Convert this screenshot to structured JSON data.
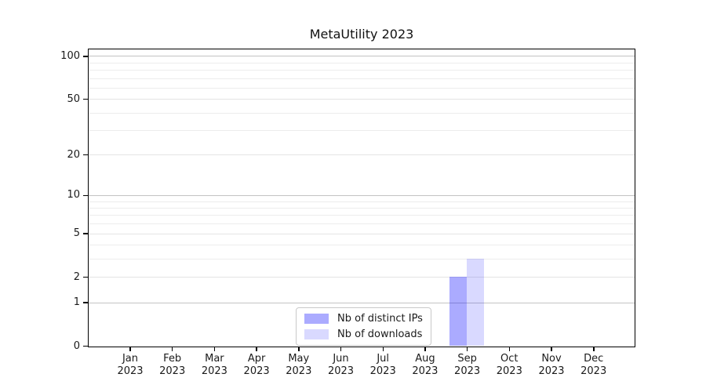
{
  "chart_data": {
    "type": "bar",
    "title": "MetaUtility 2023",
    "categories": [
      "Jan",
      "Feb",
      "Mar",
      "Apr",
      "May",
      "Jun",
      "Jul",
      "Aug",
      "Sep",
      "Oct",
      "Nov",
      "Dec"
    ],
    "category_year": "2023",
    "series": [
      {
        "name": "Nb of distinct IPs",
        "color": "rgba(0,0,255,0.33)",
        "values": [
          0,
          0,
          0,
          0,
          0,
          0,
          0,
          0,
          2,
          0,
          0,
          0
        ]
      },
      {
        "name": "Nb of downloads",
        "color": "rgba(0,0,255,0.15)",
        "values": [
          0,
          0,
          0,
          0,
          0,
          0,
          0,
          0,
          3,
          0,
          0,
          0
        ]
      }
    ],
    "xlabel": "",
    "ylabel": "",
    "yscale": "log1p",
    "ylim": [
      0,
      111
    ],
    "yticks": [
      0,
      1,
      2,
      5,
      10,
      20,
      50,
      100
    ],
    "gridlines_decade": [
      1,
      10,
      100
    ],
    "gridlines_labeled_minor": [
      2,
      5,
      20,
      50
    ],
    "gridlines_minor": [
      3,
      4,
      6,
      7,
      8,
      9,
      30,
      40,
      60,
      70,
      80,
      90
    ],
    "grid": true,
    "legend_position": "lower center",
    "style": {
      "grid_decade_color": "#c3c3c3",
      "grid_labeled_minor_color": "#e4e4e4",
      "grid_minor_color": "#ececec",
      "spine_color": "#000000",
      "text_color": "#1a1a1a"
    }
  }
}
